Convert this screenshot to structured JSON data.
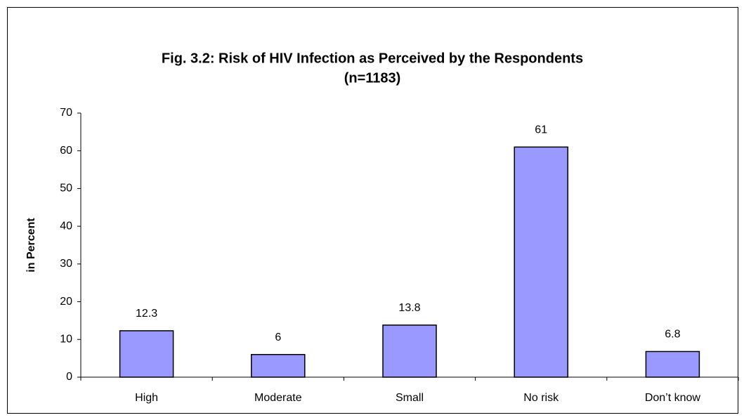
{
  "chart_data": {
    "type": "bar",
    "title": "Fig. 3.2: Risk of HIV Infection as Perceived by the Respondents",
    "subtitle": "(n=1183)",
    "y_label": "in Percent",
    "categories": [
      "High",
      "Moderate",
      "Small",
      "No risk",
      "Don’t know"
    ],
    "values": [
      12.3,
      6,
      13.8,
      61,
      6.8
    ],
    "color": "#9999ff",
    "ylim": [
      0,
      70
    ],
    "yticks": [
      0,
      10,
      20,
      30,
      40,
      50,
      60,
      70
    ],
    "grid": false
  }
}
